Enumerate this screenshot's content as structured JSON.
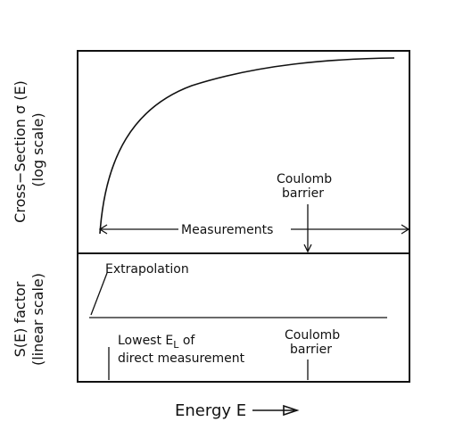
{
  "diagram": {
    "top_panel": {
      "y_label_line1": "Cross−Section σ (E)",
      "y_label_line2": "(log scale)",
      "coulomb_line1": "Coulomb",
      "coulomb_line2": "barrier",
      "measurements": "Measurements"
    },
    "bottom_panel": {
      "y_label_line1": "S(E) factor",
      "y_label_line2": "(linear scale)",
      "extrapolation": "Extrapolation",
      "lowest_prefix": "Lowest E",
      "lowest_sub": "L",
      "lowest_suffix": " of",
      "lowest_line2": "direct measurement",
      "coulomb_line1": "Coulomb",
      "coulomb_line2": "barrier"
    },
    "x_axis": {
      "label": "Energy E"
    }
  }
}
